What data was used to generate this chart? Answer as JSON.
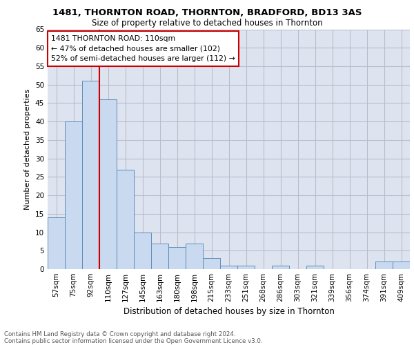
{
  "title1": "1481, THORNTON ROAD, THORNTON, BRADFORD, BD13 3AS",
  "title2": "Size of property relative to detached houses in Thornton",
  "xlabel": "Distribution of detached houses by size in Thornton",
  "ylabel": "Number of detached properties",
  "categories": [
    "57sqm",
    "75sqm",
    "92sqm",
    "110sqm",
    "127sqm",
    "145sqm",
    "163sqm",
    "180sqm",
    "198sqm",
    "215sqm",
    "233sqm",
    "251sqm",
    "268sqm",
    "286sqm",
    "303sqm",
    "321sqm",
    "339sqm",
    "356sqm",
    "374sqm",
    "391sqm",
    "409sqm"
  ],
  "values": [
    14,
    40,
    51,
    46,
    27,
    10,
    7,
    6,
    7,
    3,
    1,
    1,
    0,
    1,
    0,
    1,
    0,
    0,
    0,
    2,
    2
  ],
  "bar_color": "#c9d9f0",
  "bar_edge_color": "#5b8db8",
  "vline_color": "#cc0000",
  "annotation_text": "1481 THORNTON ROAD: 110sqm\n← 47% of detached houses are smaller (102)\n52% of semi-detached houses are larger (112) →",
  "annotation_box_color": "#cc0000",
  "grid_color": "#bbbbcc",
  "bg_color": "#dde4f0",
  "footer": "Contains HM Land Registry data © Crown copyright and database right 2024.\nContains public sector information licensed under the Open Government Licence v3.0.",
  "ylim": [
    0,
    65
  ],
  "yticks": [
    0,
    5,
    10,
    15,
    20,
    25,
    30,
    35,
    40,
    45,
    50,
    55,
    60,
    65
  ],
  "title1_fontsize": 9.5,
  "title2_fontsize": 8.5,
  "footer_fontsize": 6.2,
  "ylabel_fontsize": 8,
  "xlabel_fontsize": 8.5,
  "tick_fontsize": 7.5,
  "ann_fontsize": 7.8
}
